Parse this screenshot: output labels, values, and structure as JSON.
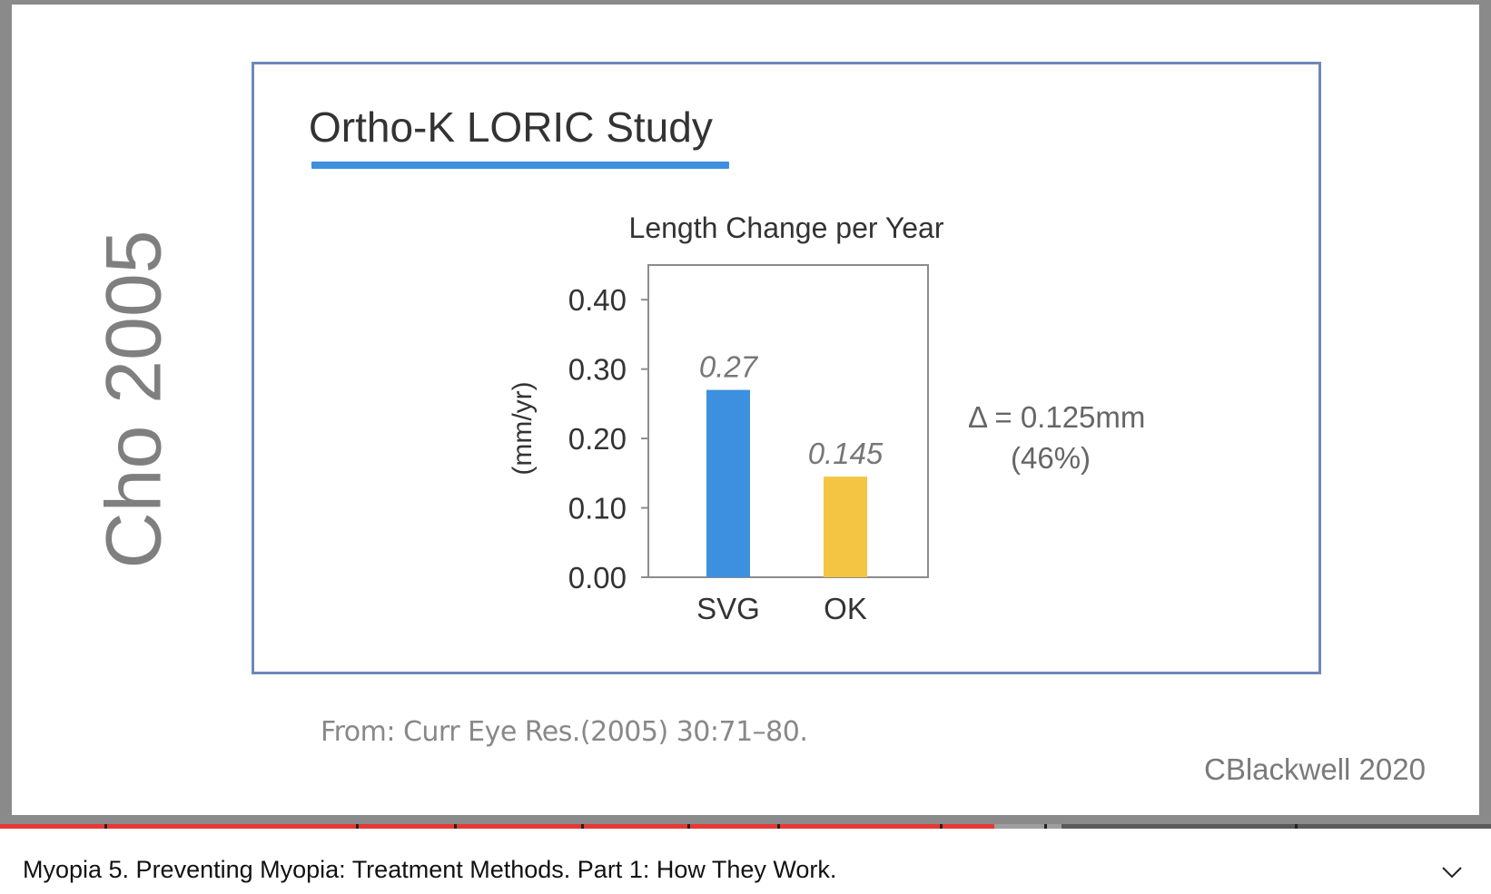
{
  "slide": {
    "side_title": "Cho 2005",
    "study_title": "Ortho-K LORIC Study",
    "annotation_delta": "Δ = 0.125mm",
    "annotation_percent": "(46%)",
    "citation": "From: Curr Eye Res.(2005) 30:71–80.",
    "credit": "CBlackwell 2020"
  },
  "chart_data": {
    "type": "bar",
    "title": "Length Change per Year",
    "xlabel": "",
    "ylabel": "(mm/yr)",
    "categories": [
      "SVG",
      "OK"
    ],
    "values": [
      0.27,
      0.145
    ],
    "value_labels": [
      "0.27",
      "0.145"
    ],
    "colors": [
      "#3d8fe0",
      "#f4c542"
    ],
    "ylim": [
      0,
      0.45
    ],
    "yticks": [
      0.0,
      0.1,
      0.2,
      0.3,
      0.4
    ],
    "ytick_labels": [
      "0.00",
      "0.10",
      "0.20",
      "0.30",
      "0.40"
    ],
    "grid": false,
    "legend": "none"
  },
  "player": {
    "video_title": "Myopia 5. Preventing Myopia: Treatment Methods. Part 1: How They Work.",
    "progress_played": 0.667,
    "progress_buffered": 0.712,
    "expand_icon": "chevron-down-icon"
  }
}
